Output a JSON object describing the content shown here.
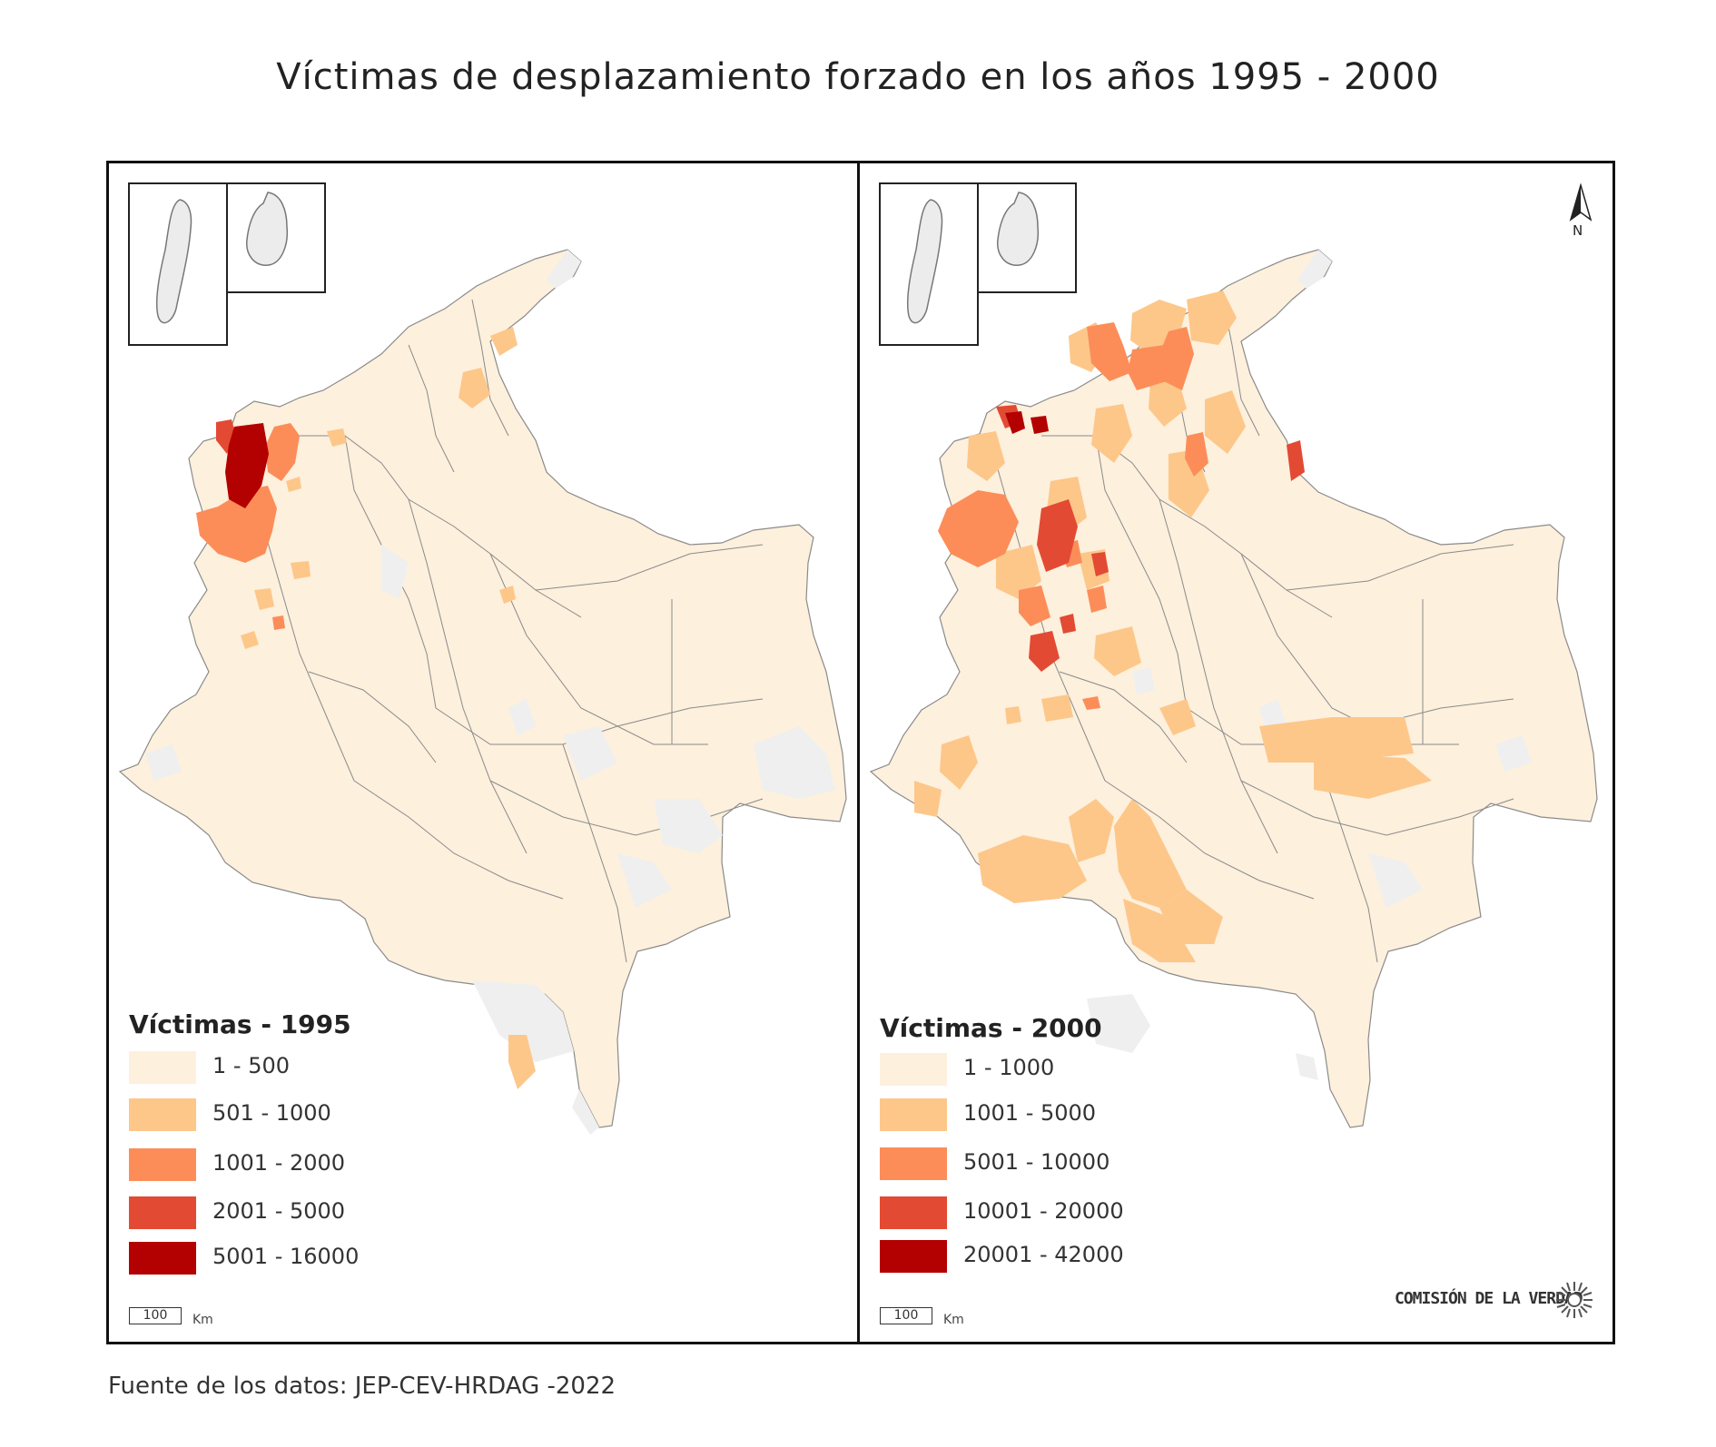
{
  "title": "Víctimas de desplazamiento forzado en los años 1995 - 2000",
  "source": "Fuente de los datos: JEP-CEV-HRDAG -2022",
  "north_label": "N",
  "logo": {
    "text": "COMISIÓN DE LA VERDAD"
  },
  "panels": [
    {
      "legend_title": "Víctimas - 1995",
      "classes": [
        {
          "range": "1 - 500",
          "color": "#fdf0dd"
        },
        {
          "range": "501 - 1000",
          "color": "#fdc78a"
        },
        {
          "range": "1001 - 2000",
          "color": "#fc8d59"
        },
        {
          "range": "2001 - 5000",
          "color": "#e34a33"
        },
        {
          "range": "5001 - 16000",
          "color": "#b30000"
        }
      ],
      "scale": {
        "value": "100",
        "unit": "Km"
      }
    },
    {
      "legend_title": "Víctimas - 2000",
      "classes": [
        {
          "range": "1 - 1000",
          "color": "#fdf0dd"
        },
        {
          "range": "1001 - 5000",
          "color": "#fdc78a"
        },
        {
          "range": "5001 - 10000",
          "color": "#fc8d59"
        },
        {
          "range": "10001 - 20000",
          "color": "#e34a33"
        },
        {
          "range": "20001 - 42000",
          "color": "#b30000"
        }
      ],
      "scale": {
        "value": "100",
        "unit": "Km"
      }
    }
  ],
  "no_data_color": "#efefef"
}
